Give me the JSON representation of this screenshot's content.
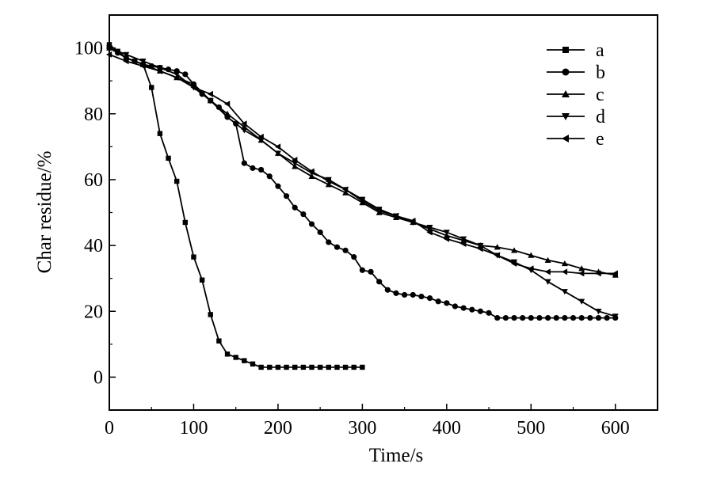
{
  "chart_data": {
    "type": "line",
    "xlabel": "Time/s",
    "ylabel": "Char residue/%",
    "xlim": [
      0,
      650
    ],
    "ylim": [
      -10,
      110
    ],
    "xticks": [
      0,
      100,
      200,
      300,
      400,
      500,
      600
    ],
    "yticks": [
      0,
      20,
      40,
      60,
      80,
      100
    ],
    "grid": false,
    "legend_position": "top-right",
    "colors": {
      "line": "#000000",
      "background": "#ffffff"
    },
    "series": [
      {
        "name": "a",
        "marker": "square",
        "x": [
          0,
          10,
          20,
          30,
          40,
          50,
          60,
          70,
          80,
          90,
          100,
          110,
          120,
          130,
          140,
          150,
          160,
          170,
          180,
          190,
          200,
          210,
          220,
          230,
          240,
          250,
          260,
          270,
          280,
          290,
          300
        ],
        "y": [
          101,
          99,
          97,
          96,
          95,
          88,
          74,
          66.5,
          59.5,
          47,
          36.5,
          29.5,
          19,
          11,
          7,
          6,
          5,
          4,
          3,
          3,
          3,
          3,
          3,
          3,
          3,
          3,
          3,
          3,
          3,
          3,
          3
        ]
      },
      {
        "name": "b",
        "marker": "circle",
        "x": [
          0,
          10,
          20,
          30,
          40,
          50,
          60,
          70,
          80,
          90,
          100,
          110,
          120,
          130,
          140,
          150,
          160,
          170,
          180,
          190,
          200,
          210,
          220,
          230,
          240,
          250,
          260,
          270,
          280,
          290,
          300,
          310,
          320,
          330,
          340,
          350,
          360,
          370,
          380,
          390,
          400,
          410,
          420,
          430,
          440,
          450,
          460,
          470,
          480,
          490,
          500,
          510,
          520,
          530,
          540,
          550,
          560,
          570,
          580,
          590,
          600
        ],
        "y": [
          100,
          98.5,
          97,
          96,
          95,
          94.5,
          94,
          93.5,
          93,
          92,
          89,
          86,
          84,
          82,
          79,
          77,
          65,
          63.5,
          63,
          61,
          58,
          55,
          51.5,
          49.5,
          46.5,
          44,
          41,
          39.5,
          38.5,
          36.5,
          32.5,
          32,
          29,
          26.5,
          25.5,
          25,
          25,
          24.5,
          24,
          23,
          22.5,
          21.5,
          21,
          20.5,
          20,
          19.5,
          18,
          18,
          18,
          18,
          18,
          18,
          18,
          18,
          18,
          18,
          18,
          18,
          18,
          18,
          18
        ]
      },
      {
        "name": "c",
        "marker": "triangle-up",
        "x": [
          0,
          20,
          40,
          60,
          80,
          100,
          120,
          140,
          160,
          180,
          200,
          220,
          240,
          260,
          280,
          300,
          320,
          340,
          360,
          380,
          400,
          420,
          440,
          460,
          480,
          500,
          520,
          540,
          560,
          580,
          600
        ],
        "y": [
          100,
          97,
          95,
          93,
          91,
          89,
          84,
          80,
          76,
          72,
          68,
          64,
          61,
          58.5,
          56,
          53,
          50,
          48.5,
          47,
          45,
          43,
          41.5,
          40,
          39.5,
          38.5,
          37,
          35.5,
          34.5,
          33,
          32,
          31
        ]
      },
      {
        "name": "d",
        "marker": "triangle-down",
        "x": [
          0,
          20,
          40,
          60,
          80,
          100,
          120,
          140,
          160,
          180,
          200,
          220,
          240,
          260,
          280,
          300,
          320,
          340,
          360,
          380,
          400,
          420,
          440,
          460,
          480,
          500,
          520,
          540,
          560,
          580,
          600
        ],
        "y": [
          100,
          98,
          96,
          94,
          92,
          88,
          84,
          79,
          75,
          72,
          68,
          65,
          62,
          60,
          57,
          54,
          51,
          49,
          47,
          45.5,
          44,
          42,
          40,
          37,
          35,
          32.5,
          29,
          26,
          23,
          20,
          18.5
        ]
      },
      {
        "name": "e",
        "marker": "triangle-left",
        "x": [
          0,
          20,
          40,
          60,
          80,
          100,
          120,
          140,
          160,
          180,
          200,
          220,
          240,
          260,
          280,
          300,
          320,
          340,
          360,
          380,
          400,
          420,
          440,
          460,
          480,
          500,
          520,
          540,
          560,
          580,
          600
        ],
        "y": [
          98,
          96,
          94.5,
          93,
          91,
          88,
          86,
          83,
          77,
          73,
          70,
          66,
          62.5,
          59.5,
          57,
          53.5,
          50.5,
          49,
          47.5,
          44,
          42,
          40.5,
          39,
          37,
          34.5,
          33,
          32,
          32,
          31.5,
          31.5,
          31.5
        ]
      }
    ]
  }
}
